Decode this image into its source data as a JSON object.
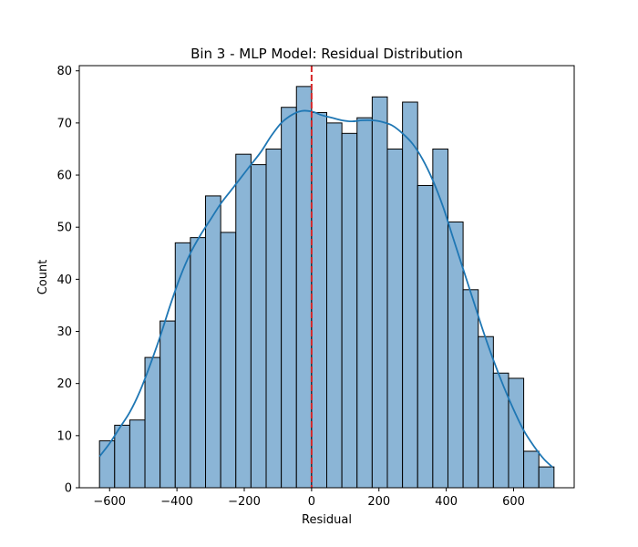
{
  "chart_data": {
    "type": "histogram",
    "title": "Bin 3 - MLP Model: Residual Distribution",
    "xlabel": "Residual",
    "ylabel": "Count",
    "xlim": [
      -690,
      780
    ],
    "ylim": [
      0,
      81
    ],
    "x_ticks": [
      -600,
      -400,
      -200,
      0,
      200,
      400,
      600
    ],
    "y_ticks": [
      0,
      10,
      20,
      30,
      40,
      50,
      60,
      70,
      80
    ],
    "bins": {
      "start": -630,
      "width": 45,
      "counts": [
        9,
        12,
        13,
        25,
        32,
        47,
        48,
        56,
        49,
        64,
        62,
        65,
        73,
        77,
        72,
        70,
        68,
        71,
        75,
        65,
        74,
        58,
        65,
        51,
        38,
        29,
        22,
        21,
        7,
        4
      ]
    },
    "kde": {
      "x": [
        -630,
        -600,
        -570,
        -540,
        -510,
        -480,
        -450,
        -420,
        -390,
        -360,
        -330,
        -300,
        -270,
        -240,
        -210,
        -180,
        -150,
        -120,
        -90,
        -60,
        -30,
        0,
        30,
        60,
        90,
        120,
        150,
        180,
        210,
        240,
        270,
        300,
        330,
        360,
        390,
        420,
        450,
        480,
        510,
        540,
        570,
        600,
        630,
        660,
        690,
        715
      ],
      "y": [
        6,
        8.5,
        11.5,
        14.5,
        18.5,
        23.5,
        29,
        35,
        40.5,
        45,
        48.5,
        51.5,
        54.5,
        57,
        59.5,
        62,
        64.5,
        67.5,
        70,
        71.5,
        72.3,
        72.2,
        71.5,
        71,
        70.5,
        70.3,
        70.5,
        70.5,
        70.2,
        69.5,
        68,
        66,
        63,
        59,
        54,
        48,
        42,
        36,
        30,
        24.5,
        19.5,
        15,
        11,
        8,
        5.5,
        4
      ]
    },
    "vline": {
      "x": 0,
      "color": "#d62728",
      "style": "dashed"
    },
    "bar_color": "#8bb5d6",
    "bar_edge_color": "#000000",
    "kde_color": "#1f77b4",
    "grid": false
  }
}
